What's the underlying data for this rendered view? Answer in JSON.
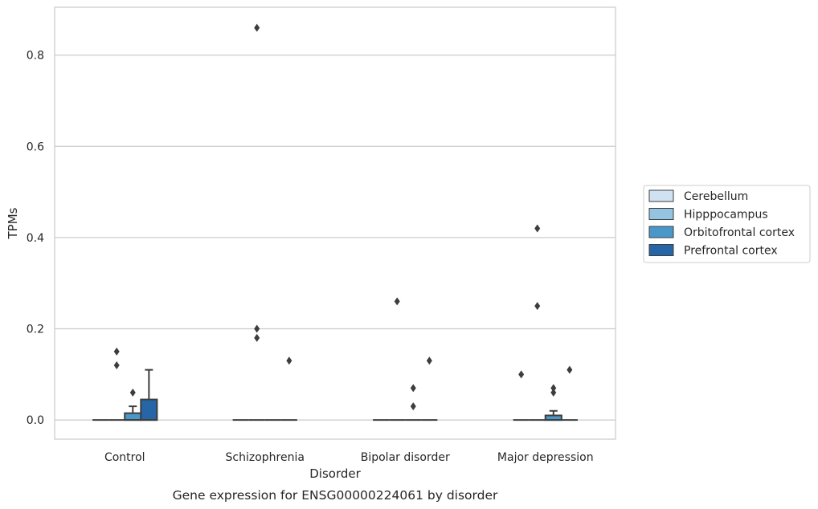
{
  "chart_data": {
    "type": "box",
    "title": "",
    "caption": "Gene expression for ENSG00000224061 by disorder",
    "xlabel": "Disorder",
    "ylabel": "TPMs",
    "ylim": [
      -0.042,
      0.905
    ],
    "yticks": [
      0.0,
      0.2,
      0.4,
      0.6,
      0.8
    ],
    "ytick_labels": [
      "0.0",
      "0.2",
      "0.4",
      "0.6",
      "0.8"
    ],
    "grid": "horizontal",
    "legend_position": "center-right",
    "categories": [
      "Control",
      "Schizophrenia",
      "Bipolar disorder",
      "Major depression"
    ],
    "series": [
      {
        "name": "Cerebellum",
        "color": "#d0e1f2",
        "boxes": [
          {
            "q1": 0,
            "median": 0,
            "q3": 0,
            "whisker_low": 0,
            "whisker_high": 0,
            "outliers": []
          },
          {
            "q1": 0,
            "median": 0,
            "q3": 0,
            "whisker_low": 0,
            "whisker_high": 0,
            "outliers": []
          },
          {
            "q1": 0,
            "median": 0,
            "q3": 0,
            "whisker_low": 0,
            "whisker_high": 0,
            "outliers": []
          },
          {
            "q1": 0,
            "median": 0,
            "q3": 0,
            "whisker_low": 0,
            "whisker_high": 0,
            "outliers": [
              0.1
            ]
          }
        ]
      },
      {
        "name": "Hipppocampus",
        "color": "#94c4df",
        "boxes": [
          {
            "q1": 0,
            "median": 0,
            "q3": 0,
            "whisker_low": 0,
            "whisker_high": 0,
            "outliers": [
              0.12,
              0.15
            ]
          },
          {
            "q1": 0,
            "median": 0,
            "q3": 0,
            "whisker_low": 0,
            "whisker_high": 0,
            "outliers": [
              0.86,
              0.2,
              0.18
            ]
          },
          {
            "q1": 0,
            "median": 0,
            "q3": 0,
            "whisker_low": 0,
            "whisker_high": 0,
            "outliers": [
              0.26
            ]
          },
          {
            "q1": 0,
            "median": 0,
            "q3": 0,
            "whisker_low": 0,
            "whisker_high": 0,
            "outliers": [
              0.42,
              0.25
            ]
          }
        ]
      },
      {
        "name": "Orbitofrontal cortex",
        "color": "#4a98c9",
        "boxes": [
          {
            "q1": 0,
            "median": 0,
            "q3": 0.015,
            "whisker_low": 0,
            "whisker_high": 0.03,
            "outliers": [
              0.06
            ]
          },
          {
            "q1": 0,
            "median": 0,
            "q3": 0,
            "whisker_low": 0,
            "whisker_high": 0,
            "outliers": []
          },
          {
            "q1": 0,
            "median": 0,
            "q3": 0,
            "whisker_low": 0,
            "whisker_high": 0,
            "outliers": [
              0.07,
              0.03
            ]
          },
          {
            "q1": 0,
            "median": 0,
            "q3": 0.01,
            "whisker_low": 0,
            "whisker_high": 0.02,
            "outliers": [
              0.07,
              0.06
            ]
          }
        ]
      },
      {
        "name": "Prefrontal cortex",
        "color": "#2666a6",
        "boxes": [
          {
            "q1": 0,
            "median": 0,
            "q3": 0.045,
            "whisker_low": 0,
            "whisker_high": 0.11,
            "outliers": []
          },
          {
            "q1": 0,
            "median": 0,
            "q3": 0,
            "whisker_low": 0,
            "whisker_high": 0,
            "outliers": [
              0.13
            ]
          },
          {
            "q1": 0,
            "median": 0,
            "q3": 0,
            "whisker_low": 0,
            "whisker_high": 0,
            "outliers": [
              0.13
            ]
          },
          {
            "q1": 0,
            "median": 0,
            "q3": 0,
            "whisker_low": 0,
            "whisker_high": 0,
            "outliers": [
              0.11
            ]
          }
        ]
      }
    ],
    "line_color": "#3d3d3d",
    "grid_color": "#cccccc",
    "frame_color": "#cccccc"
  }
}
